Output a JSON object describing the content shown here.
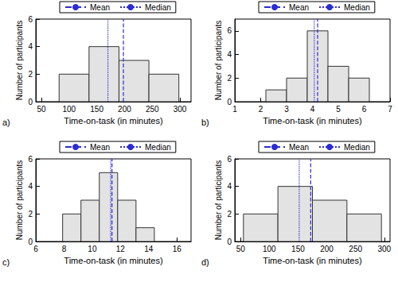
{
  "chart_data": [
    {
      "type": "histogram",
      "title": "a)",
      "x_label": "Time-on-task (in minutes)",
      "y_label": "Number of participants",
      "bins": [
        82,
        136,
        190,
        244,
        298
      ],
      "counts": [
        2,
        4,
        3,
        2
      ],
      "color": "#e3e3e3",
      "lines": [
        {
          "name": "Mean",
          "value": 198,
          "color": "#2b2bd6",
          "line_style": "dashed"
        },
        {
          "name": "Median",
          "value": 170,
          "color": "#2b2bd6",
          "line_style": "dotted"
        }
      ],
      "xlim": [
        40,
        320
      ],
      "xticks": [
        50,
        100,
        150,
        200,
        250,
        300
      ],
      "ylim": [
        0,
        6
      ],
      "yticks": [
        0,
        2,
        4,
        6
      ],
      "grid": false,
      "legend": "top"
    },
    {
      "type": "histogram",
      "title": "b)",
      "x_label": "Time-on-task (in minutes)",
      "y_label": "Number of participants",
      "bins": [
        2.2,
        3.0,
        3.8,
        4.6,
        5.4,
        6.2
      ],
      "counts": [
        1,
        2,
        6,
        3,
        2
      ],
      "color": "#e3e3e3",
      "lines": [
        {
          "name": "Mean",
          "value": 4.2,
          "color": "#2b2bd6",
          "line_style": "dashed"
        },
        {
          "name": "Median",
          "value": 4.07,
          "color": "#2b2bd6",
          "line_style": "dotted"
        }
      ],
      "xlim": [
        1,
        7
      ],
      "xticks": [
        1,
        2,
        3,
        4,
        5,
        6,
        7
      ],
      "ylim": [
        0,
        7
      ],
      "yticks": [
        0,
        2,
        4,
        6
      ],
      "grid": false,
      "legend": "top"
    },
    {
      "type": "histogram",
      "title": "c)",
      "x_label": "Time-on-task (in minutes)",
      "y_label": "Number of participants",
      "bins": [
        7.9,
        9.2,
        10.5,
        11.8,
        13.1,
        14.4
      ],
      "counts": [
        2,
        3,
        5,
        3,
        1
      ],
      "color": "#e3e3e3",
      "lines": [
        {
          "name": "Mean",
          "value": 11.4,
          "color": "#2b2bd6",
          "line_style": "dashed"
        },
        {
          "name": "Median",
          "value": 11.3,
          "color": "#2b2bd6",
          "line_style": "dotted"
        }
      ],
      "xlim": [
        6,
        17
      ],
      "xticks": [
        6,
        8,
        10,
        12,
        14,
        16
      ],
      "ylim": [
        0,
        6
      ],
      "yticks": [
        0,
        2,
        4,
        6
      ],
      "grid": false,
      "legend": "top"
    },
    {
      "type": "histogram",
      "title": "d)",
      "x_label": "Time-on-task (in minutes)",
      "y_label": "Number of participants",
      "bins": [
        55,
        115,
        175,
        235,
        295
      ],
      "counts": [
        2,
        4,
        3,
        2
      ],
      "color": "#e3e3e3",
      "lines": [
        {
          "name": "Mean",
          "value": 172,
          "color": "#2b2bd6",
          "line_style": "dashed"
        },
        {
          "name": "Median",
          "value": 152,
          "color": "#2b2bd6",
          "line_style": "dotted"
        }
      ],
      "xlim": [
        40,
        310
      ],
      "xticks": [
        50,
        100,
        150,
        200,
        250,
        300
      ],
      "ylim": [
        0,
        6
      ],
      "yticks": [
        0,
        2,
        4,
        6
      ],
      "grid": false,
      "legend": "top"
    }
  ]
}
